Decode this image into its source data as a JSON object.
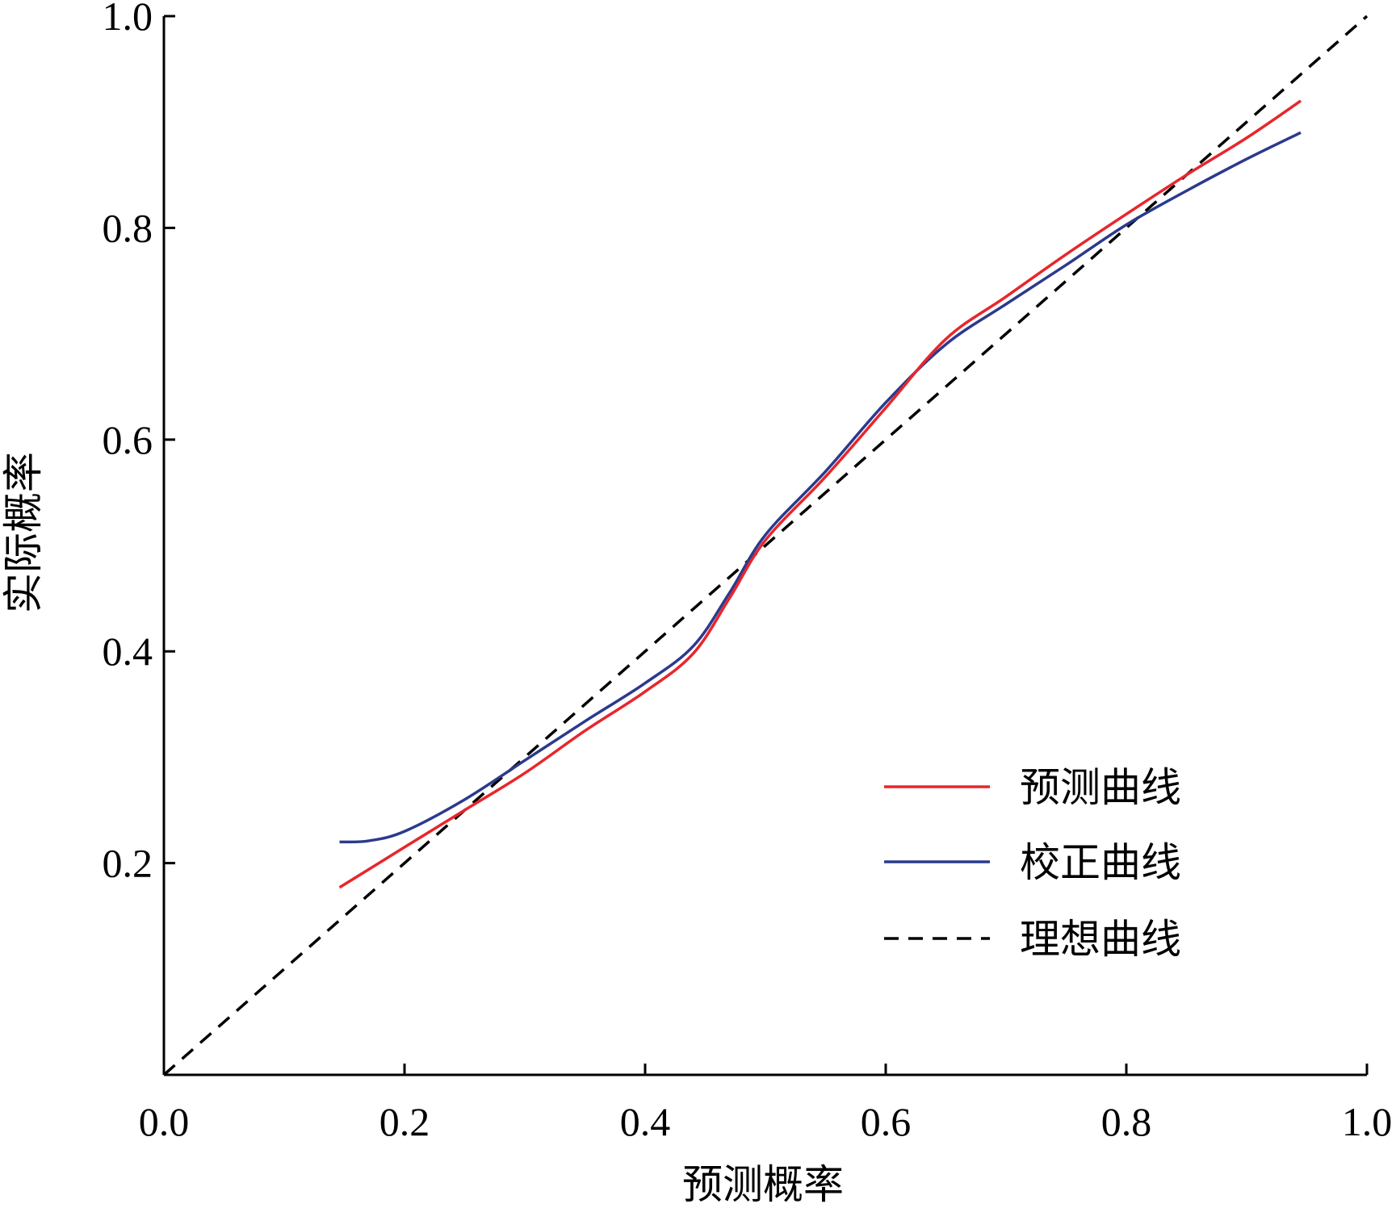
{
  "chart_data": {
    "type": "line",
    "xlabel": "预测概率",
    "ylabel": "实际概率",
    "xlim": [
      0.0,
      1.0
    ],
    "ylim": [
      0.0,
      1.0
    ],
    "x_ticks": [
      0.0,
      0.2,
      0.4,
      0.6,
      0.8,
      1.0
    ],
    "x_tick_labels": [
      "0.0",
      "0.2",
      "0.4",
      "0.6",
      "0.8",
      "1.0"
    ],
    "y_ticks": [
      0.2,
      0.4,
      0.6,
      0.8,
      1.0
    ],
    "y_tick_labels": [
      "0.2",
      "0.4",
      "0.6",
      "0.8",
      "1.0"
    ],
    "grid": false,
    "legend_position": "bottom-right",
    "series": [
      {
        "name": "预测曲线",
        "color": "#e8262b",
        "style": "solid",
        "x": [
          0.146,
          0.2,
          0.25,
          0.3,
          0.35,
          0.4,
          0.44,
          0.47,
          0.5,
          0.55,
          0.6,
          0.65,
          0.7,
          0.75,
          0.8,
          0.85,
          0.9,
          0.945
        ],
        "y": [
          0.177,
          0.215,
          0.25,
          0.285,
          0.325,
          0.362,
          0.398,
          0.45,
          0.505,
          0.565,
          0.63,
          0.695,
          0.735,
          0.775,
          0.813,
          0.85,
          0.885,
          0.92
        ]
      },
      {
        "name": "校正曲线",
        "color": "#2b3a8c",
        "style": "solid",
        "x": [
          0.146,
          0.17,
          0.2,
          0.25,
          0.3,
          0.35,
          0.4,
          0.44,
          0.47,
          0.5,
          0.55,
          0.6,
          0.65,
          0.7,
          0.75,
          0.8,
          0.85,
          0.9,
          0.945
        ],
        "y": [
          0.22,
          0.221,
          0.23,
          0.26,
          0.297,
          0.334,
          0.37,
          0.405,
          0.455,
          0.51,
          0.57,
          0.635,
          0.69,
          0.728,
          0.765,
          0.803,
          0.835,
          0.865,
          0.89
        ]
      },
      {
        "name": "理想曲线",
        "color": "#000000",
        "style": "dashed",
        "x": [
          0.0,
          1.0
        ],
        "y": [
          0.0,
          1.0
        ]
      }
    ]
  }
}
